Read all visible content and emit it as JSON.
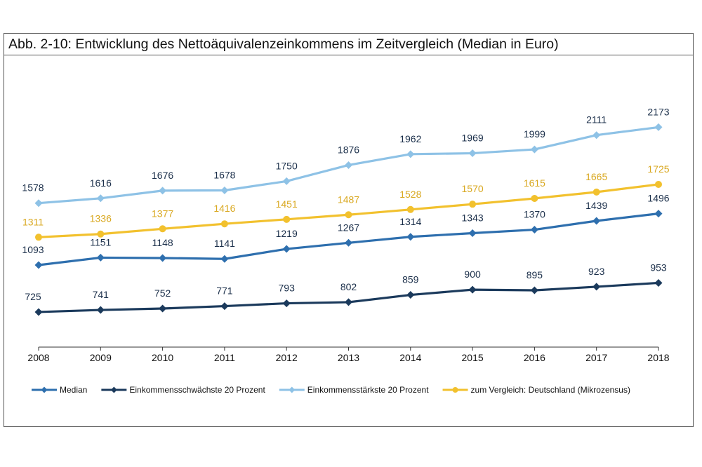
{
  "chart_data": {
    "type": "line",
    "title": "Abb. 2-10: Entwicklung des Nettoäquivalenzeinkommens im Zeitvergleich (Median in Euro)",
    "xlabel": "",
    "ylabel": "",
    "x": [
      "2008",
      "2009",
      "2010",
      "2011",
      "2012",
      "2013",
      "2014",
      "2015",
      "2016",
      "2017",
      "2018"
    ],
    "ylim": [
      450,
      2300
    ],
    "grid": false,
    "legend_position": "bottom",
    "data_labels": true,
    "series": [
      {
        "name": "Median",
        "color": "#2E6FAE",
        "marker": "diamond",
        "values": [
          1093,
          1151,
          1148,
          1141,
          1219,
          1267,
          1314,
          1343,
          1370,
          1439,
          1496
        ]
      },
      {
        "name": "Einkommensschwächste 20 Prozent",
        "color": "#1B3A5C",
        "marker": "diamond",
        "values": [
          725,
          741,
          752,
          771,
          793,
          802,
          859,
          900,
          895,
          923,
          953
        ]
      },
      {
        "name": "Einkommensstärkste 20 Prozent",
        "color": "#8EC2E6",
        "marker": "diamond",
        "values": [
          1578,
          1616,
          1676,
          1678,
          1750,
          1876,
          1962,
          1969,
          1999,
          2111,
          2173
        ]
      },
      {
        "name": "zum Vergleich: Deutschland (Mikrozensus)",
        "color": "#F2C12E",
        "marker": "circle",
        "label_color": "#D9A820",
        "values": [
          1311,
          1336,
          1377,
          1416,
          1451,
          1487,
          1528,
          1570,
          1615,
          1665,
          1725
        ]
      }
    ]
  }
}
